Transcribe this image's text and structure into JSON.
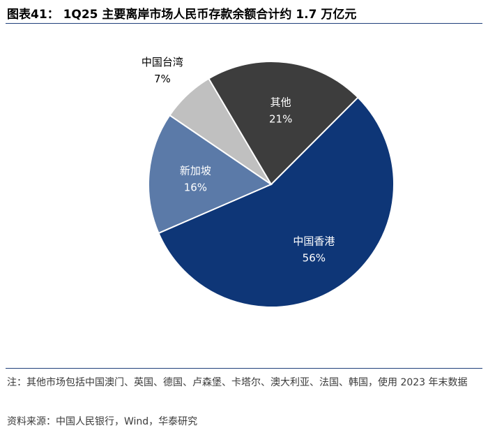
{
  "title": "图表41：  1Q25 主要离岸市场人民币存款余额合计约 1.7 万亿元",
  "note": "注：其他市场包括中国澳门、英国、德国、卢森堡、卡塔尔、澳大利亚、法国、韩国，使用 2023 年末数据",
  "source": "资料来源：中国人民银行，Wind，华泰研究",
  "chart_data": {
    "type": "pie",
    "title": "",
    "slices": [
      {
        "label": "中国香港",
        "value": 56,
        "value_label": "56%",
        "color": "#0e3677",
        "text_color": "#ffffff"
      },
      {
        "label": "新加坡",
        "value": 16,
        "value_label": "16%",
        "color": "#5b7aa8",
        "text_color": "#ffffff"
      },
      {
        "label": "中国台湾",
        "value": 7,
        "value_label": "7%",
        "color": "#c0c0c0",
        "text_color": "#000000"
      },
      {
        "label": "其他",
        "value": 21,
        "value_label": "21%",
        "color": "#3d3d3d",
        "text_color": "#ffffff"
      }
    ]
  }
}
